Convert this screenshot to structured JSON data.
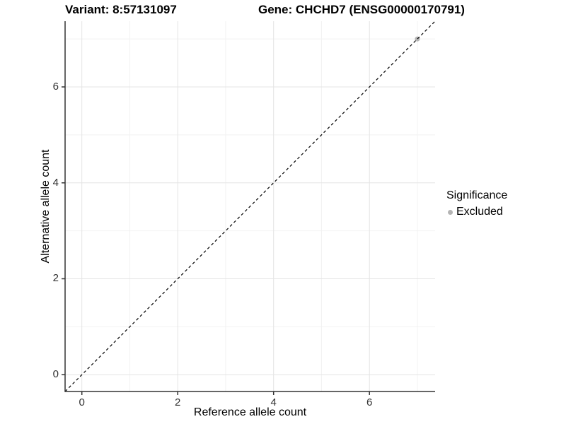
{
  "header": {
    "variant_title": "Variant: 8:57131097",
    "gene_title": "Gene: CHCHD7 (ENSG00000170791)"
  },
  "chart_data": {
    "type": "scatter",
    "title": "Variant: 8:57131097 — Gene: CHCHD7 (ENSG00000170791)",
    "xlabel": "Reference allele count",
    "ylabel": "Alternative allele count",
    "xlim": [
      -0.35,
      7.37
    ],
    "ylim": [
      -0.35,
      7.37
    ],
    "x_ticks": [
      0,
      2,
      4,
      6
    ],
    "y_ticks": [
      0,
      2,
      4,
      6
    ],
    "x_minor_gridlines": [
      1,
      3,
      5,
      7
    ],
    "y_minor_gridlines": [
      1,
      3,
      5,
      7
    ],
    "grid": true,
    "series": [
      {
        "name": "Excluded",
        "color": "#b4b4b4",
        "points": [
          {
            "x": 7,
            "y": 7
          }
        ]
      }
    ],
    "reference_line": {
      "type": "identity",
      "style": "dashed",
      "color": "#000000",
      "from": [
        -0.35,
        -0.35
      ],
      "to": [
        7.37,
        7.37
      ]
    },
    "legend": {
      "title": "Significance",
      "position": "right",
      "entries": [
        {
          "label": "Excluded",
          "color": "#b4b4b4"
        }
      ]
    },
    "colors": {
      "background": "#ffffff",
      "axis_line": "#333333",
      "major_gridline": "#e4e4e4",
      "minor_gridline": "#f2f2f2",
      "tick_text": "#303030",
      "point_excluded": "#b4b4b4"
    }
  }
}
